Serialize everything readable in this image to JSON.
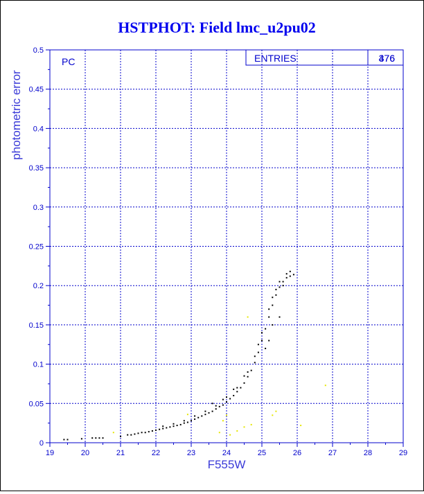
{
  "chart_data": {
    "type": "scatter",
    "title": "HSTPHOT: Field lmc_u2pu02",
    "xlabel": "F555W",
    "ylabel": "photometric error",
    "xlim": [
      19,
      29
    ],
    "ylim": [
      0,
      0.5
    ],
    "xticks": [
      "19",
      "20",
      "21",
      "22",
      "23",
      "24",
      "25",
      "26",
      "27",
      "28",
      "29"
    ],
    "yticks": [
      "0",
      "0.05",
      "0.1",
      "0.15",
      "0.2",
      "0.25",
      "0.3",
      "0.35",
      "0.4",
      "0.45",
      "0.5"
    ],
    "grid": true,
    "panel_label": "PC",
    "stats": {
      "label": "ENTRIES",
      "values": [
        "376",
        "476"
      ]
    },
    "colors": {
      "axis": "#0000cc",
      "title": "#0000ee",
      "main": "#000000",
      "secondary": "#e6e600"
    },
    "series": [
      {
        "color": "#000000",
        "points": [
          [
            19.4,
            0.004
          ],
          [
            19.5,
            0.004
          ],
          [
            19.9,
            0.005
          ],
          [
            20.2,
            0.006
          ],
          [
            20.3,
            0.006
          ],
          [
            20.4,
            0.006
          ],
          [
            20.5,
            0.006
          ],
          [
            21.0,
            0.008
          ],
          [
            21.2,
            0.01
          ],
          [
            21.3,
            0.01
          ],
          [
            21.4,
            0.011
          ],
          [
            21.5,
            0.012
          ],
          [
            21.6,
            0.013
          ],
          [
            21.7,
            0.013
          ],
          [
            21.8,
            0.014
          ],
          [
            21.9,
            0.015
          ],
          [
            22.0,
            0.016
          ],
          [
            22.1,
            0.017
          ],
          [
            22.2,
            0.018
          ],
          [
            22.3,
            0.019
          ],
          [
            22.4,
            0.02
          ],
          [
            22.5,
            0.021
          ],
          [
            22.6,
            0.022
          ],
          [
            22.7,
            0.023
          ],
          [
            22.8,
            0.025
          ],
          [
            22.9,
            0.026
          ],
          [
            23.0,
            0.028
          ],
          [
            23.1,
            0.03
          ],
          [
            23.2,
            0.032
          ],
          [
            23.3,
            0.034
          ],
          [
            23.4,
            0.036
          ],
          [
            23.5,
            0.038
          ],
          [
            23.6,
            0.04
          ],
          [
            23.7,
            0.043
          ],
          [
            23.8,
            0.046
          ],
          [
            23.9,
            0.048
          ],
          [
            24.0,
            0.052
          ],
          [
            24.1,
            0.056
          ],
          [
            24.2,
            0.06
          ],
          [
            24.3,
            0.065
          ],
          [
            24.4,
            0.07
          ],
          [
            24.5,
            0.076
          ],
          [
            24.6,
            0.084
          ],
          [
            24.7,
            0.092
          ],
          [
            24.8,
            0.102
          ],
          [
            24.9,
            0.115
          ],
          [
            25.0,
            0.13
          ],
          [
            25.1,
            0.145
          ],
          [
            25.2,
            0.16
          ],
          [
            25.3,
            0.175
          ],
          [
            25.4,
            0.188
          ],
          [
            25.5,
            0.198
          ],
          [
            25.6,
            0.205
          ],
          [
            25.7,
            0.21
          ],
          [
            25.8,
            0.212
          ],
          [
            25.9,
            0.214
          ],
          [
            22.2,
            0.021
          ],
          [
            22.5,
            0.024
          ],
          [
            22.8,
            0.028
          ],
          [
            23.1,
            0.034
          ],
          [
            23.4,
            0.04
          ],
          [
            23.7,
            0.047
          ],
          [
            24.0,
            0.058
          ],
          [
            24.3,
            0.07
          ],
          [
            24.6,
            0.09
          ],
          [
            24.9,
            0.125
          ],
          [
            25.2,
            0.17
          ],
          [
            25.5,
            0.205
          ],
          [
            25.7,
            0.215
          ],
          [
            25.8,
            0.218
          ],
          [
            23.6,
            0.05
          ],
          [
            23.9,
            0.055
          ],
          [
            24.2,
            0.068
          ],
          [
            24.5,
            0.085
          ],
          [
            24.8,
            0.11
          ],
          [
            25.0,
            0.14
          ],
          [
            25.3,
            0.185
          ],
          [
            25.4,
            0.195
          ],
          [
            25.6,
            0.2
          ],
          [
            25.1,
            0.12
          ],
          [
            25.2,
            0.13
          ],
          [
            25.3,
            0.15
          ],
          [
            25.5,
            0.16
          ]
        ]
      },
      {
        "color": "#e6e600",
        "points": [
          [
            20.8,
            0.013
          ],
          [
            22.9,
            0.036
          ],
          [
            23.8,
            0.013
          ],
          [
            23.9,
            0.028
          ],
          [
            24.0,
            0.035
          ],
          [
            24.1,
            0.01
          ],
          [
            24.3,
            0.015
          ],
          [
            24.5,
            0.02
          ],
          [
            24.7,
            0.023
          ],
          [
            24.6,
            0.16
          ],
          [
            25.3,
            0.035
          ],
          [
            25.4,
            0.04
          ],
          [
            26.1,
            0.022
          ],
          [
            26.8,
            0.073
          ]
        ]
      }
    ]
  }
}
